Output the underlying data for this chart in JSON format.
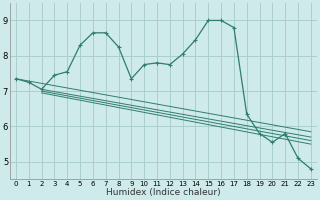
{
  "xlabel": "Humidex (Indice chaleur)",
  "bg_color": "#ceeaea",
  "grid_color": "#aacece",
  "line_color": "#2e7d6e",
  "xlim": [
    -0.5,
    23.5
  ],
  "ylim": [
    4.5,
    9.5
  ],
  "xticks": [
    0,
    1,
    2,
    3,
    4,
    5,
    6,
    7,
    8,
    9,
    10,
    11,
    12,
    13,
    14,
    15,
    16,
    17,
    18,
    19,
    20,
    21,
    22,
    23
  ],
  "yticks": [
    5,
    6,
    7,
    8,
    9
  ],
  "main_x": [
    0,
    1,
    2,
    3,
    4,
    5,
    6,
    7,
    8,
    9,
    10,
    11,
    12,
    13,
    14,
    15,
    16,
    17,
    18,
    19,
    20,
    21,
    22,
    23
  ],
  "main_y": [
    7.35,
    7.25,
    7.05,
    7.45,
    7.55,
    8.3,
    8.65,
    8.65,
    8.25,
    7.35,
    7.75,
    7.8,
    7.75,
    8.05,
    8.45,
    9.0,
    9.0,
    8.8,
    6.35,
    5.8,
    5.55,
    5.8,
    5.1,
    4.8
  ],
  "line1_x": [
    0,
    23
  ],
  "line1_y": [
    7.35,
    5.85
  ],
  "line2_x": [
    2,
    23
  ],
  "line2_y": [
    7.05,
    5.7
  ],
  "line3_x": [
    2,
    23
  ],
  "line3_y": [
    7.0,
    5.6
  ],
  "line4_x": [
    2,
    23
  ],
  "line4_y": [
    6.95,
    5.5
  ]
}
